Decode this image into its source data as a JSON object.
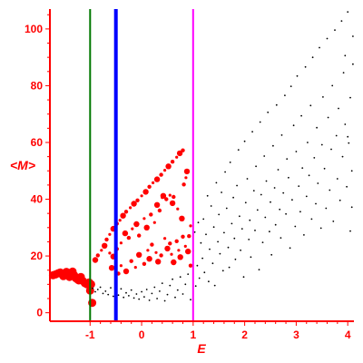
{
  "chart_data": {
    "type": "scatter",
    "xlabel": "E",
    "ylabel": "<M>",
    "xlim": [
      -1.78,
      4.12
    ],
    "ylim": [
      -3,
      107
    ],
    "x_ticks": [
      -1,
      0,
      1,
      2,
      3,
      4
    ],
    "y_ticks": [
      0,
      20,
      40,
      60,
      80,
      100
    ],
    "x_tick_labels": [
      "-1",
      "0",
      "1",
      "2",
      "3",
      "4"
    ],
    "y_tick_labels": [
      "0",
      "20",
      "40",
      "60",
      "80",
      "100"
    ],
    "grid": false,
    "vertical_lines": [
      {
        "x": -1.0,
        "color": "#007700"
      },
      {
        "x": -0.5,
        "color": "#0000ff"
      },
      {
        "x": 1.0,
        "color": "#ff00ff"
      }
    ],
    "series": [
      {
        "marker_color": "#ff0000",
        "points": [
          [
            -1.72,
            13.2
          ],
          [
            -1.67,
            13.5
          ],
          [
            -1.62,
            13.9
          ],
          [
            -1.58,
            14.2
          ],
          [
            -1.55,
            13.6
          ],
          [
            -1.52,
            12.9
          ],
          [
            -1.49,
            13.8
          ],
          [
            -1.46,
            14.4
          ],
          [
            -1.43,
            13.5
          ],
          [
            -1.4,
            12.6
          ],
          [
            -1.37,
            13.9
          ],
          [
            -1.34,
            14.5
          ],
          [
            -1.31,
            13.2
          ],
          [
            -1.28,
            12.2
          ],
          [
            -1.25,
            11.8
          ],
          [
            -1.22,
            11.4
          ],
          [
            -1.18,
            12.6
          ],
          [
            -1.14,
            11.2
          ],
          [
            -1.1,
            10.4
          ],
          [
            -1.06,
            10.0
          ],
          [
            -1.02,
            10.7
          ],
          [
            -0.98,
            10.0
          ],
          [
            -1.0,
            7.8
          ],
          [
            -0.96,
            3.5
          ],
          [
            -0.9,
            18.6
          ],
          [
            -0.85,
            20.2
          ],
          [
            -0.78,
            22.0
          ],
          [
            -0.72,
            23.6
          ],
          [
            -0.68,
            25.8
          ],
          [
            -0.62,
            27.6
          ],
          [
            -0.55,
            29.6
          ],
          [
            -0.48,
            31.4
          ],
          [
            -0.42,
            32.6
          ],
          [
            -0.36,
            34.2
          ],
          [
            -0.3,
            35.6
          ],
          [
            -0.22,
            37.0
          ],
          [
            -0.15,
            38.4
          ],
          [
            -0.08,
            39.6
          ],
          [
            0.0,
            41.2
          ],
          [
            0.08,
            42.6
          ],
          [
            0.15,
            44.4
          ],
          [
            0.22,
            45.8
          ],
          [
            0.3,
            47.0
          ],
          [
            0.38,
            48.6
          ],
          [
            0.45,
            50.2
          ],
          [
            0.52,
            51.6
          ],
          [
            0.6,
            53.2
          ],
          [
            0.68,
            54.8
          ],
          [
            0.74,
            56.2
          ],
          [
            0.8,
            57.2
          ],
          [
            -0.62,
            21.0
          ],
          [
            -0.55,
            19.8
          ],
          [
            -0.48,
            22.5
          ],
          [
            -0.4,
            24.6
          ],
          [
            -0.32,
            28.0
          ],
          [
            -0.25,
            26.4
          ],
          [
            -0.18,
            29.6
          ],
          [
            -0.1,
            31.2
          ],
          [
            -0.05,
            27.2
          ],
          [
            0.05,
            33.2
          ],
          [
            0.1,
            30.0
          ],
          [
            0.18,
            34.6
          ],
          [
            0.25,
            31.8
          ],
          [
            0.3,
            38.0
          ],
          [
            0.35,
            36.0
          ],
          [
            0.4,
            40.6
          ],
          [
            0.42,
            41.2
          ],
          [
            0.48,
            40.0
          ],
          [
            0.55,
            41.4
          ],
          [
            0.6,
            38.6
          ],
          [
            0.62,
            40.8
          ],
          [
            0.7,
            36.6
          ],
          [
            0.78,
            33.2
          ],
          [
            0.82,
            45.2
          ],
          [
            0.86,
            47.6
          ],
          [
            0.88,
            49.8
          ],
          [
            0.92,
            27.0
          ],
          [
            0.95,
            30.6
          ],
          [
            -0.58,
            15.8
          ],
          [
            -0.45,
            13.8
          ],
          [
            -0.4,
            16.6
          ],
          [
            -0.3,
            14.6
          ],
          [
            -0.2,
            18.2
          ],
          [
            -0.12,
            16.0
          ],
          [
            -0.05,
            20.4
          ],
          [
            0.05,
            17.2
          ],
          [
            0.12,
            22.0
          ],
          [
            0.15,
            19.0
          ],
          [
            0.2,
            24.0
          ],
          [
            0.28,
            21.2
          ],
          [
            0.32,
            18.0
          ],
          [
            0.38,
            20.2
          ],
          [
            0.45,
            26.2
          ],
          [
            0.5,
            22.6
          ],
          [
            0.55,
            24.4
          ],
          [
            0.58,
            20.6
          ],
          [
            0.62,
            17.8
          ],
          [
            0.68,
            25.2
          ],
          [
            0.72,
            22.0
          ],
          [
            0.75,
            19.6
          ],
          [
            0.8,
            26.8
          ],
          [
            0.85,
            23.4
          ],
          [
            0.9,
            21.6
          ],
          [
            0.95,
            16.6
          ]
        ]
      },
      {
        "marker_color": "#000000",
        "points": [
          [
            -0.95,
            8.6
          ],
          [
            -0.9,
            7.4
          ],
          [
            -0.85,
            8.2
          ],
          [
            -0.8,
            9.0
          ],
          [
            -0.75,
            6.8
          ],
          [
            -0.7,
            7.6
          ],
          [
            -0.65,
            6.4
          ],
          [
            -0.6,
            8.8
          ],
          [
            -0.55,
            5.8
          ],
          [
            -0.5,
            7.2
          ],
          [
            -0.45,
            6.2
          ],
          [
            -0.4,
            8.4
          ],
          [
            -0.35,
            5.4
          ],
          [
            -0.3,
            7.0
          ],
          [
            -0.25,
            6.0
          ],
          [
            -0.2,
            8.0
          ],
          [
            -0.15,
            5.2
          ],
          [
            -0.1,
            6.6
          ],
          [
            -0.05,
            4.8
          ],
          [
            0.0,
            7.4
          ],
          [
            0.05,
            5.6
          ],
          [
            0.1,
            8.2
          ],
          [
            0.15,
            4.4
          ],
          [
            0.2,
            6.8
          ],
          [
            0.25,
            9.0
          ],
          [
            0.3,
            5.0
          ],
          [
            0.35,
            7.6
          ],
          [
            0.4,
            10.4
          ],
          [
            0.45,
            4.2
          ],
          [
            0.5,
            6.4
          ],
          [
            0.55,
            9.6
          ],
          [
            0.6,
            11.8
          ],
          [
            0.65,
            5.4
          ],
          [
            0.7,
            8.0
          ],
          [
            0.75,
            12.6
          ],
          [
            0.8,
            6.6
          ],
          [
            0.85,
            10.0
          ],
          [
            0.9,
            13.6
          ],
          [
            0.95,
            4.6
          ],
          [
            1.0,
            21.8
          ],
          [
            1.03,
            28.4
          ],
          [
            1.05,
            9.4
          ],
          [
            1.08,
            16.6
          ],
          [
            1.1,
            31.8
          ],
          [
            1.12,
            12.2
          ],
          [
            1.15,
            24.6
          ],
          [
            1.18,
            19.2
          ],
          [
            1.2,
            33.0
          ],
          [
            1.22,
            14.2
          ],
          [
            1.25,
            27.6
          ],
          [
            1.28,
            41.2
          ],
          [
            1.3,
            11.0
          ],
          [
            1.32,
            22.4
          ],
          [
            1.35,
            37.6
          ],
          [
            1.38,
            17.4
          ],
          [
            1.4,
            30.2
          ],
          [
            1.42,
            9.6
          ],
          [
            1.45,
            45.8
          ],
          [
            1.48,
            25.0
          ],
          [
            1.5,
            34.6
          ],
          [
            1.52,
            20.8
          ],
          [
            1.55,
            42.4
          ],
          [
            1.58,
            14.8
          ],
          [
            1.6,
            28.2
          ],
          [
            1.62,
            49.6
          ],
          [
            1.65,
            36.8
          ],
          [
            1.68,
            23.0
          ],
          [
            1.7,
            16.0
          ],
          [
            1.72,
            53.0
          ],
          [
            1.75,
            31.4
          ],
          [
            1.78,
            40.6
          ],
          [
            1.8,
            26.2
          ],
          [
            1.82,
            18.8
          ],
          [
            1.85,
            44.8
          ],
          [
            1.88,
            57.4
          ],
          [
            1.9,
            34.0
          ],
          [
            1.92,
            22.0
          ],
          [
            1.95,
            29.6
          ],
          [
            1.98,
            12.6
          ],
          [
            2.0,
            60.4
          ],
          [
            2.02,
            38.8
          ],
          [
            2.05,
            47.2
          ],
          [
            2.08,
            25.8
          ],
          [
            2.1,
            32.6
          ],
          [
            2.12,
            19.6
          ],
          [
            2.15,
            63.8
          ],
          [
            2.18,
            43.0
          ],
          [
            2.2,
            29.0
          ],
          [
            2.22,
            51.6
          ],
          [
            2.25,
            36.2
          ],
          [
            2.28,
            15.2
          ],
          [
            2.3,
            67.2
          ],
          [
            2.32,
            41.6
          ],
          [
            2.35,
            24.8
          ],
          [
            2.38,
            55.2
          ],
          [
            2.4,
            33.6
          ],
          [
            2.42,
            46.4
          ],
          [
            2.45,
            70.6
          ],
          [
            2.48,
            28.6
          ],
          [
            2.5,
            39.0
          ],
          [
            2.52,
            20.4
          ],
          [
            2.55,
            58.8
          ],
          [
            2.58,
            44.0
          ],
          [
            2.6,
            31.0
          ],
          [
            2.62,
            73.2
          ],
          [
            2.65,
            50.4
          ],
          [
            2.68,
            36.4
          ],
          [
            2.7,
            26.4
          ],
          [
            2.72,
            62.6
          ],
          [
            2.75,
            42.2
          ],
          [
            2.78,
            76.6
          ],
          [
            2.8,
            34.8
          ],
          [
            2.82,
            54.2
          ],
          [
            2.85,
            47.6
          ],
          [
            2.88,
            22.8
          ],
          [
            2.9,
            79.8
          ],
          [
            2.92,
            39.8
          ],
          [
            2.95,
            66.0
          ],
          [
            2.98,
            30.4
          ],
          [
            3.0,
            56.8
          ],
          [
            3.02,
            83.4
          ],
          [
            3.05,
            44.6
          ],
          [
            3.08,
            35.6
          ],
          [
            3.1,
            69.4
          ],
          [
            3.12,
            51.0
          ],
          [
            3.15,
            27.4
          ],
          [
            3.18,
            86.6
          ],
          [
            3.2,
            41.0
          ],
          [
            3.22,
            60.0
          ],
          [
            3.25,
            48.4
          ],
          [
            3.28,
            73.0
          ],
          [
            3.3,
            33.0
          ],
          [
            3.32,
            90.0
          ],
          [
            3.35,
            54.6
          ],
          [
            3.38,
            38.4
          ],
          [
            3.4,
            65.2
          ],
          [
            3.42,
            45.6
          ],
          [
            3.45,
            93.4
          ],
          [
            3.48,
            29.8
          ],
          [
            3.5,
            59.2
          ],
          [
            3.52,
            76.0
          ],
          [
            3.55,
            50.8
          ],
          [
            3.58,
            36.8
          ],
          [
            3.6,
            96.6
          ],
          [
            3.62,
            68.8
          ],
          [
            3.65,
            43.2
          ],
          [
            3.68,
            57.6
          ],
          [
            3.7,
            80.0
          ],
          [
            3.72,
            32.2
          ],
          [
            3.75,
            99.6
          ],
          [
            3.78,
            62.4
          ],
          [
            3.8,
            47.2
          ],
          [
            3.82,
            72.0
          ],
          [
            3.85,
            39.6
          ],
          [
            3.88,
            102.8
          ],
          [
            3.9,
            55.0
          ],
          [
            3.92,
            84.6
          ],
          [
            3.95,
            66.4
          ],
          [
            3.98,
            44.4
          ],
          [
            4.0,
            106.0
          ],
          [
            4.02,
            59.8
          ],
          [
            4.05,
            75.8
          ],
          [
            4.08,
            50.0
          ],
          [
            4.1,
            97.4
          ],
          [
            4.1,
            87.6
          ],
          [
            4.08,
            37.2
          ],
          [
            4.05,
            28.8
          ],
          [
            4.0,
            62.0
          ],
          [
            3.95,
            90.6
          ]
        ]
      }
    ]
  }
}
